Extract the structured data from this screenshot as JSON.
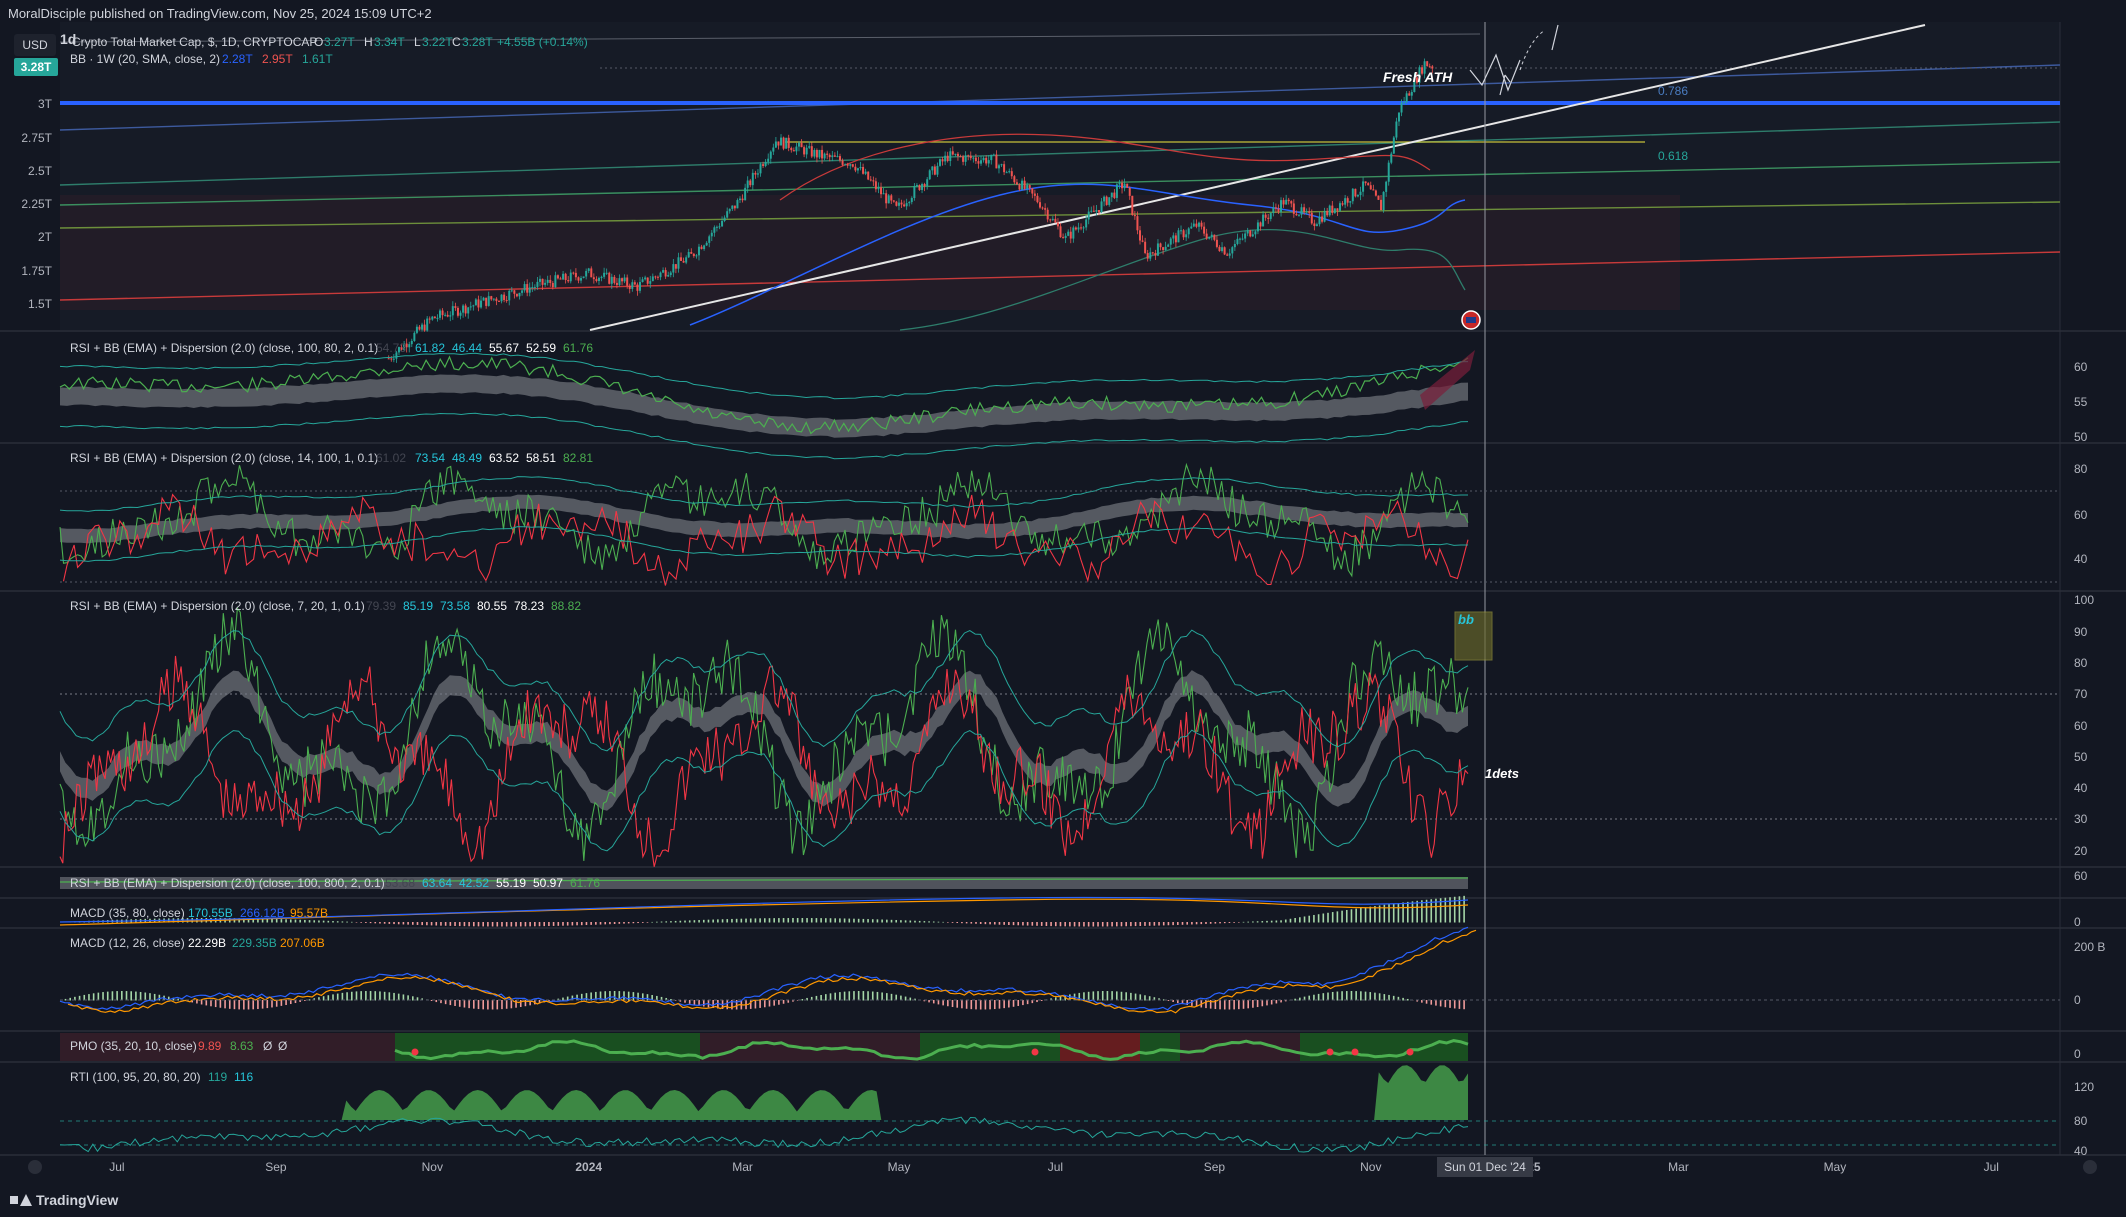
{
  "header": {
    "published": "MoralDisciple published on TradingView.com, Nov 25, 2024 15:09 UTC+2"
  },
  "footer": {
    "brand": "TradingView"
  },
  "currency_button": "USD",
  "main": {
    "interval": "1d",
    "price_badge": "3.28T",
    "legend_title": "Crypto Total Market Cap, $, 1D, CRYPTOCAP",
    "ohlc": {
      "o_label": "O",
      "o": "3.27T",
      "h_label": "H",
      "h": "3.34T",
      "l_label": "L",
      "l": "3.22T",
      "c_label": "C",
      "c": "3.28T",
      "chg": "+4.55B (+0.14%)"
    },
    "bb_label": "BB · 1W (20, SMA, close, 2)",
    "bb_values": [
      "2.28T",
      "2.95T",
      "1.61T"
    ],
    "annotation_ath": "Fresh ATH",
    "fib_786": "0.786",
    "fib_618": "0.618",
    "y_ticks": [
      "3T",
      "2.75T",
      "2.5T",
      "2.25T",
      "2T",
      "1.75T",
      "1.5T"
    ]
  },
  "panes": [
    {
      "label": "RSI + BB (EMA) + Dispersion (2.0) (close, 100, 80, 2, 0.1)",
      "values": [
        "54.73",
        "61.82",
        "46.44",
        "55.67",
        "52.59",
        "61.76"
      ],
      "y_ticks": [
        "60",
        "55",
        "50"
      ]
    },
    {
      "label": "RSI + BB (EMA) + Dispersion (2.0) (close, 14, 100, 1, 0.1)",
      "values": [
        "61.02",
        "73.54",
        "48.49",
        "63.52",
        "58.51",
        "82.81"
      ],
      "y_ticks": [
        "80",
        "60",
        "40"
      ]
    },
    {
      "label": "RSI + BB (EMA) + Dispersion (2.0) (close, 7, 20, 1, 0.1)",
      "values": [
        "79.39",
        "85.19",
        "73.58",
        "80.55",
        "78.23",
        "88.82"
      ],
      "y_ticks": [
        "100",
        "90",
        "80",
        "70",
        "60",
        "50",
        "40",
        "30",
        "20"
      ],
      "annotation_bb": "bb",
      "annotation_dets": "1dets"
    },
    {
      "label": "RSI + BB (EMA) + Dispersion (2.0) (close, 100, 800, 2, 0.1)",
      "values": [
        "53.68",
        "63.64",
        "42.52",
        "55.19",
        "50.97",
        "61.76"
      ],
      "y_ticks": [
        "60"
      ]
    },
    {
      "label": "MACD (35, 80, close)",
      "values": [
        "170.55B",
        "266.12B",
        "95.57B"
      ],
      "y_ticks": [
        "0"
      ]
    },
    {
      "label": "MACD (12, 26, close)",
      "values": [
        "22.29B",
        "229.35B",
        "207.06B"
      ],
      "y_ticks": [
        "200 B",
        "0"
      ]
    },
    {
      "label": "PMO (35, 20, 10, close)",
      "values": [
        "9.89",
        "8.63",
        "Ø",
        "Ø"
      ],
      "y_ticks": [
        "0"
      ]
    },
    {
      "label": "RTI (100, 95, 20, 80, 20)",
      "values": [
        "119",
        "116"
      ],
      "y_ticks": [
        "120",
        "80",
        "40"
      ]
    }
  ],
  "x_axis": {
    "labels": [
      "Jul",
      "Sep",
      "Nov",
      "2024",
      "Mar",
      "May",
      "Jul",
      "Sep",
      "Nov",
      "2025",
      "Mar",
      "May",
      "Jul"
    ],
    "cursor_label": "Sun 01 Dec '24"
  },
  "colors": {
    "background": "#131722",
    "bull": "#26a69a",
    "bear": "#ef5350",
    "blue_level": "#2962ff",
    "rsi_green": "#4caf50",
    "rsi_red": "#f23645"
  },
  "chart_data": {
    "type": "candlestick",
    "title": "Crypto Total Market Cap, $, 1D, CRYPTOCAP",
    "x_range": [
      "2023-06",
      "2025-07"
    ],
    "y_unit": "USD trillions",
    "ylim": [
      1.4,
      3.4
    ],
    "close_path": [
      {
        "date": "2023-10-15",
        "value": 1.08
      },
      {
        "date": "2023-11-01",
        "value": 1.38
      },
      {
        "date": "2023-11-20",
        "value": 1.5
      },
      {
        "date": "2023-12-10",
        "value": 1.62
      },
      {
        "date": "2024-01-01",
        "value": 1.72
      },
      {
        "date": "2024-01-20",
        "value": 1.62
      },
      {
        "date": "2024-02-10",
        "value": 1.85
      },
      {
        "date": "2024-02-28",
        "value": 2.25
      },
      {
        "date": "2024-03-14",
        "value": 2.72
      },
      {
        "date": "2024-04-01",
        "value": 2.6
      },
      {
        "date": "2024-04-13",
        "value": 2.55
      },
      {
        "date": "2024-04-30",
        "value": 2.2
      },
      {
        "date": "2024-05-20",
        "value": 2.6
      },
      {
        "date": "2024-06-07",
        "value": 2.57
      },
      {
        "date": "2024-06-25",
        "value": 2.25
      },
      {
        "date": "2024-07-05",
        "value": 1.98
      },
      {
        "date": "2024-07-28",
        "value": 2.4
      },
      {
        "date": "2024-08-05",
        "value": 1.85
      },
      {
        "date": "2024-08-25",
        "value": 2.08
      },
      {
        "date": "2024-09-06",
        "value": 1.88
      },
      {
        "date": "2024-09-28",
        "value": 2.26
      },
      {
        "date": "2024-10-10",
        "value": 2.11
      },
      {
        "date": "2024-10-30",
        "value": 2.38
      },
      {
        "date": "2024-11-05",
        "value": 2.22
      },
      {
        "date": "2024-11-12",
        "value": 2.95
      },
      {
        "date": "2024-11-22",
        "value": 3.3
      },
      {
        "date": "2024-11-25",
        "value": 3.28
      }
    ],
    "levels": [
      {
        "name": "blue",
        "value": 3.0
      },
      {
        "name": "yellow",
        "value": 2.71
      }
    ],
    "fib_levels": [
      {
        "label": "0.786",
        "value": 3.1
      },
      {
        "label": "0.618",
        "value": 2.55
      }
    ],
    "grid": false,
    "legend_position": "top-left"
  }
}
